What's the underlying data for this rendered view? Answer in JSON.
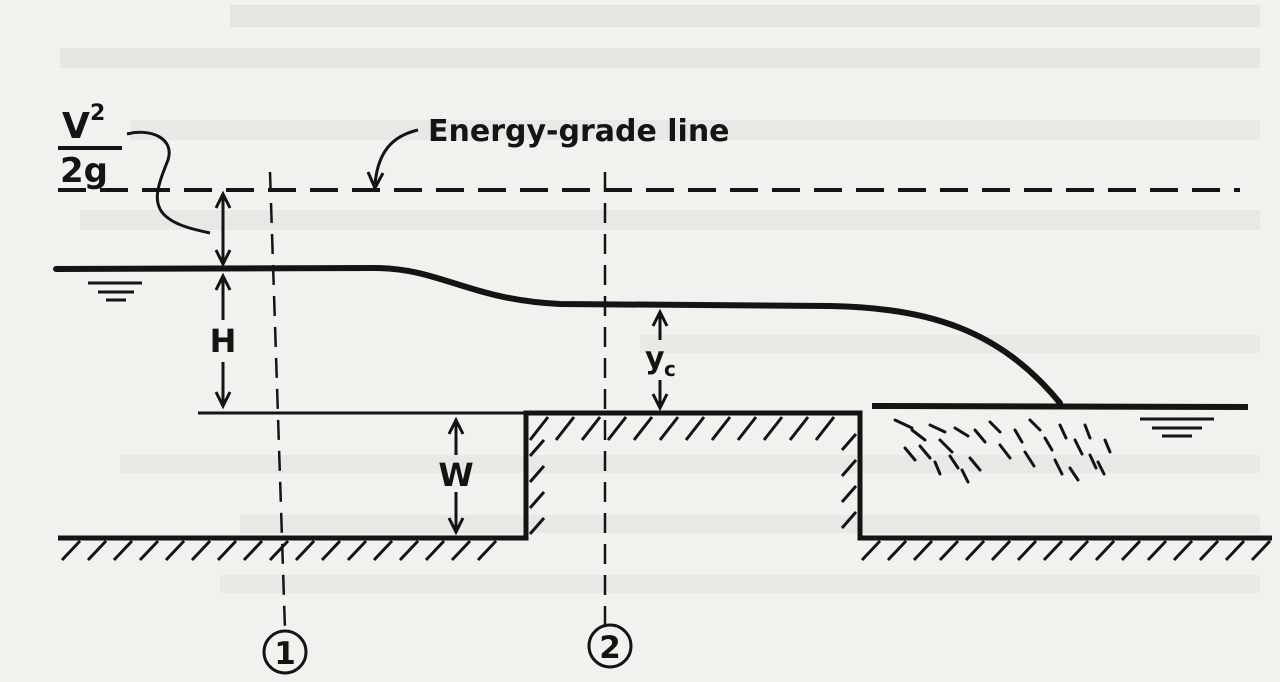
{
  "diagram": {
    "labels": {
      "energy_grade_line": "Energy-grade line",
      "velocity_head_numerator": "V",
      "velocity_head_exponent": "2",
      "velocity_head_denominator": "2g",
      "head": "H",
      "weir_height": "W",
      "critical_depth_base": "y",
      "critical_depth_subscript": "c",
      "section_1": "1",
      "section_2": "2"
    },
    "colors": {
      "ink": "#141414",
      "paper": "#f3f1ee"
    }
  }
}
